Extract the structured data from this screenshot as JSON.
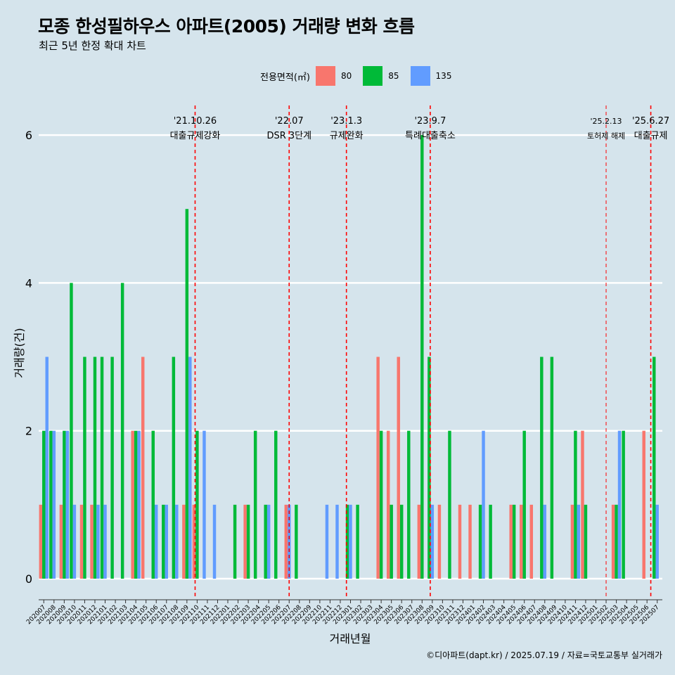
{
  "title": "모종 한성필하우스 아파트(2005) 거래량 변화 흐름",
  "subtitle": "최근 5년 한정 확대 차트",
  "caption": "©디아파트(dapt.kr) / 2025.07.19 / 자료=국토교통부 실거래가",
  "legend": {
    "title": "전용면적(㎡)",
    "items": [
      {
        "label": "80",
        "color": "#f8766d"
      },
      {
        "label": "85",
        "color": "#00ba38"
      },
      {
        "label": "135",
        "color": "#619cff"
      }
    ]
  },
  "chart_data": {
    "type": "bar",
    "title": "모종 한성필하우스 아파트(2005) 거래량 변화 흐름",
    "subtitle": "최근 5년 한정 확대 차트",
    "xlabel": "거래년월",
    "ylabel": "거래량(건)",
    "ylim": [
      0,
      6.4
    ],
    "yticks": [
      0,
      2,
      4,
      6
    ],
    "grid": true,
    "legend_position": "top",
    "categories": [
      "202007",
      "202008",
      "202009",
      "202010",
      "202011",
      "202012",
      "202101",
      "202102",
      "202103",
      "202104",
      "202105",
      "202106",
      "202107",
      "202108",
      "202109",
      "202110",
      "202111",
      "202112",
      "202201",
      "202202",
      "202203",
      "202204",
      "202205",
      "202206",
      "202207",
      "202208",
      "202209",
      "202210",
      "202211",
      "202212",
      "202301",
      "202302",
      "202303",
      "202304",
      "202305",
      "202306",
      "202307",
      "202308",
      "202309",
      "202310",
      "202311",
      "202312",
      "202401",
      "202402",
      "202403",
      "202404",
      "202405",
      "202406",
      "202407",
      "202408",
      "202409",
      "202410",
      "202411",
      "202412",
      "202501",
      "202502",
      "202503",
      "202504",
      "202505",
      "202506",
      "202507"
    ],
    "series": [
      {
        "name": "80",
        "color": "#f8766d",
        "values": [
          1,
          0,
          1,
          0,
          1,
          1,
          0,
          0,
          0,
          2,
          3,
          0,
          0,
          0,
          1,
          1,
          0,
          0,
          0,
          0,
          1,
          0,
          0,
          0,
          1,
          0,
          0,
          0,
          0,
          0,
          0,
          0,
          0,
          3,
          2,
          3,
          0,
          1,
          0,
          1,
          0,
          1,
          1,
          0,
          0,
          0,
          1,
          1,
          1,
          0,
          0,
          0,
          1,
          2,
          0,
          0,
          1,
          0,
          0,
          2,
          0
        ]
      },
      {
        "name": "85",
        "color": "#00ba38",
        "values": [
          2,
          2,
          2,
          4,
          3,
          3,
          3,
          3,
          4,
          2,
          0,
          2,
          1,
          3,
          5,
          2,
          0,
          0,
          0,
          1,
          1,
          2,
          1,
          2,
          0,
          1,
          0,
          0,
          0,
          0,
          1,
          1,
          0,
          2,
          1,
          1,
          2,
          6,
          3,
          0,
          2,
          0,
          0,
          1,
          1,
          0,
          1,
          2,
          0,
          3,
          3,
          0,
          2,
          1,
          0,
          0,
          1,
          2,
          0,
          0,
          3
        ]
      },
      {
        "name": "135",
        "color": "#619cff",
        "values": [
          3,
          2,
          2,
          1,
          0,
          1,
          1,
          0,
          0,
          2,
          0,
          1,
          1,
          1,
          3,
          0,
          2,
          1,
          0,
          0,
          0,
          0,
          1,
          0,
          1,
          0,
          0,
          0,
          1,
          1,
          1,
          0,
          0,
          0,
          0,
          0,
          0,
          0,
          1,
          0,
          0,
          0,
          0,
          2,
          0,
          0,
          0,
          0,
          0,
          1,
          0,
          0,
          1,
          0,
          0,
          0,
          2,
          0,
          0,
          0,
          1
        ]
      }
    ],
    "annotations": [
      {
        "label": "'21.10.26",
        "text": "대출규제강화",
        "x": "202110",
        "position": 0.3,
        "small": false
      },
      {
        "label": "'22.07",
        "text": "DSR 3단계",
        "x": "202207",
        "position": 0.5,
        "small": false
      },
      {
        "label": "'23.1.3",
        "text": "규제완화",
        "x": "202301",
        "position": 0.1,
        "small": false
      },
      {
        "label": "'23.9.7",
        "text": "특례대출축소",
        "x": "202309",
        "position": 0.3,
        "small": false
      },
      {
        "label": "'25.2.13",
        "text": "토허제 해제",
        "x": "202502",
        "position": 0.5,
        "small": true
      },
      {
        "label": "'25.6.27",
        "text": "대출규제",
        "x": "202506",
        "position": 0.87,
        "small": false
      }
    ],
    "annotation_color": "#ff0000"
  }
}
